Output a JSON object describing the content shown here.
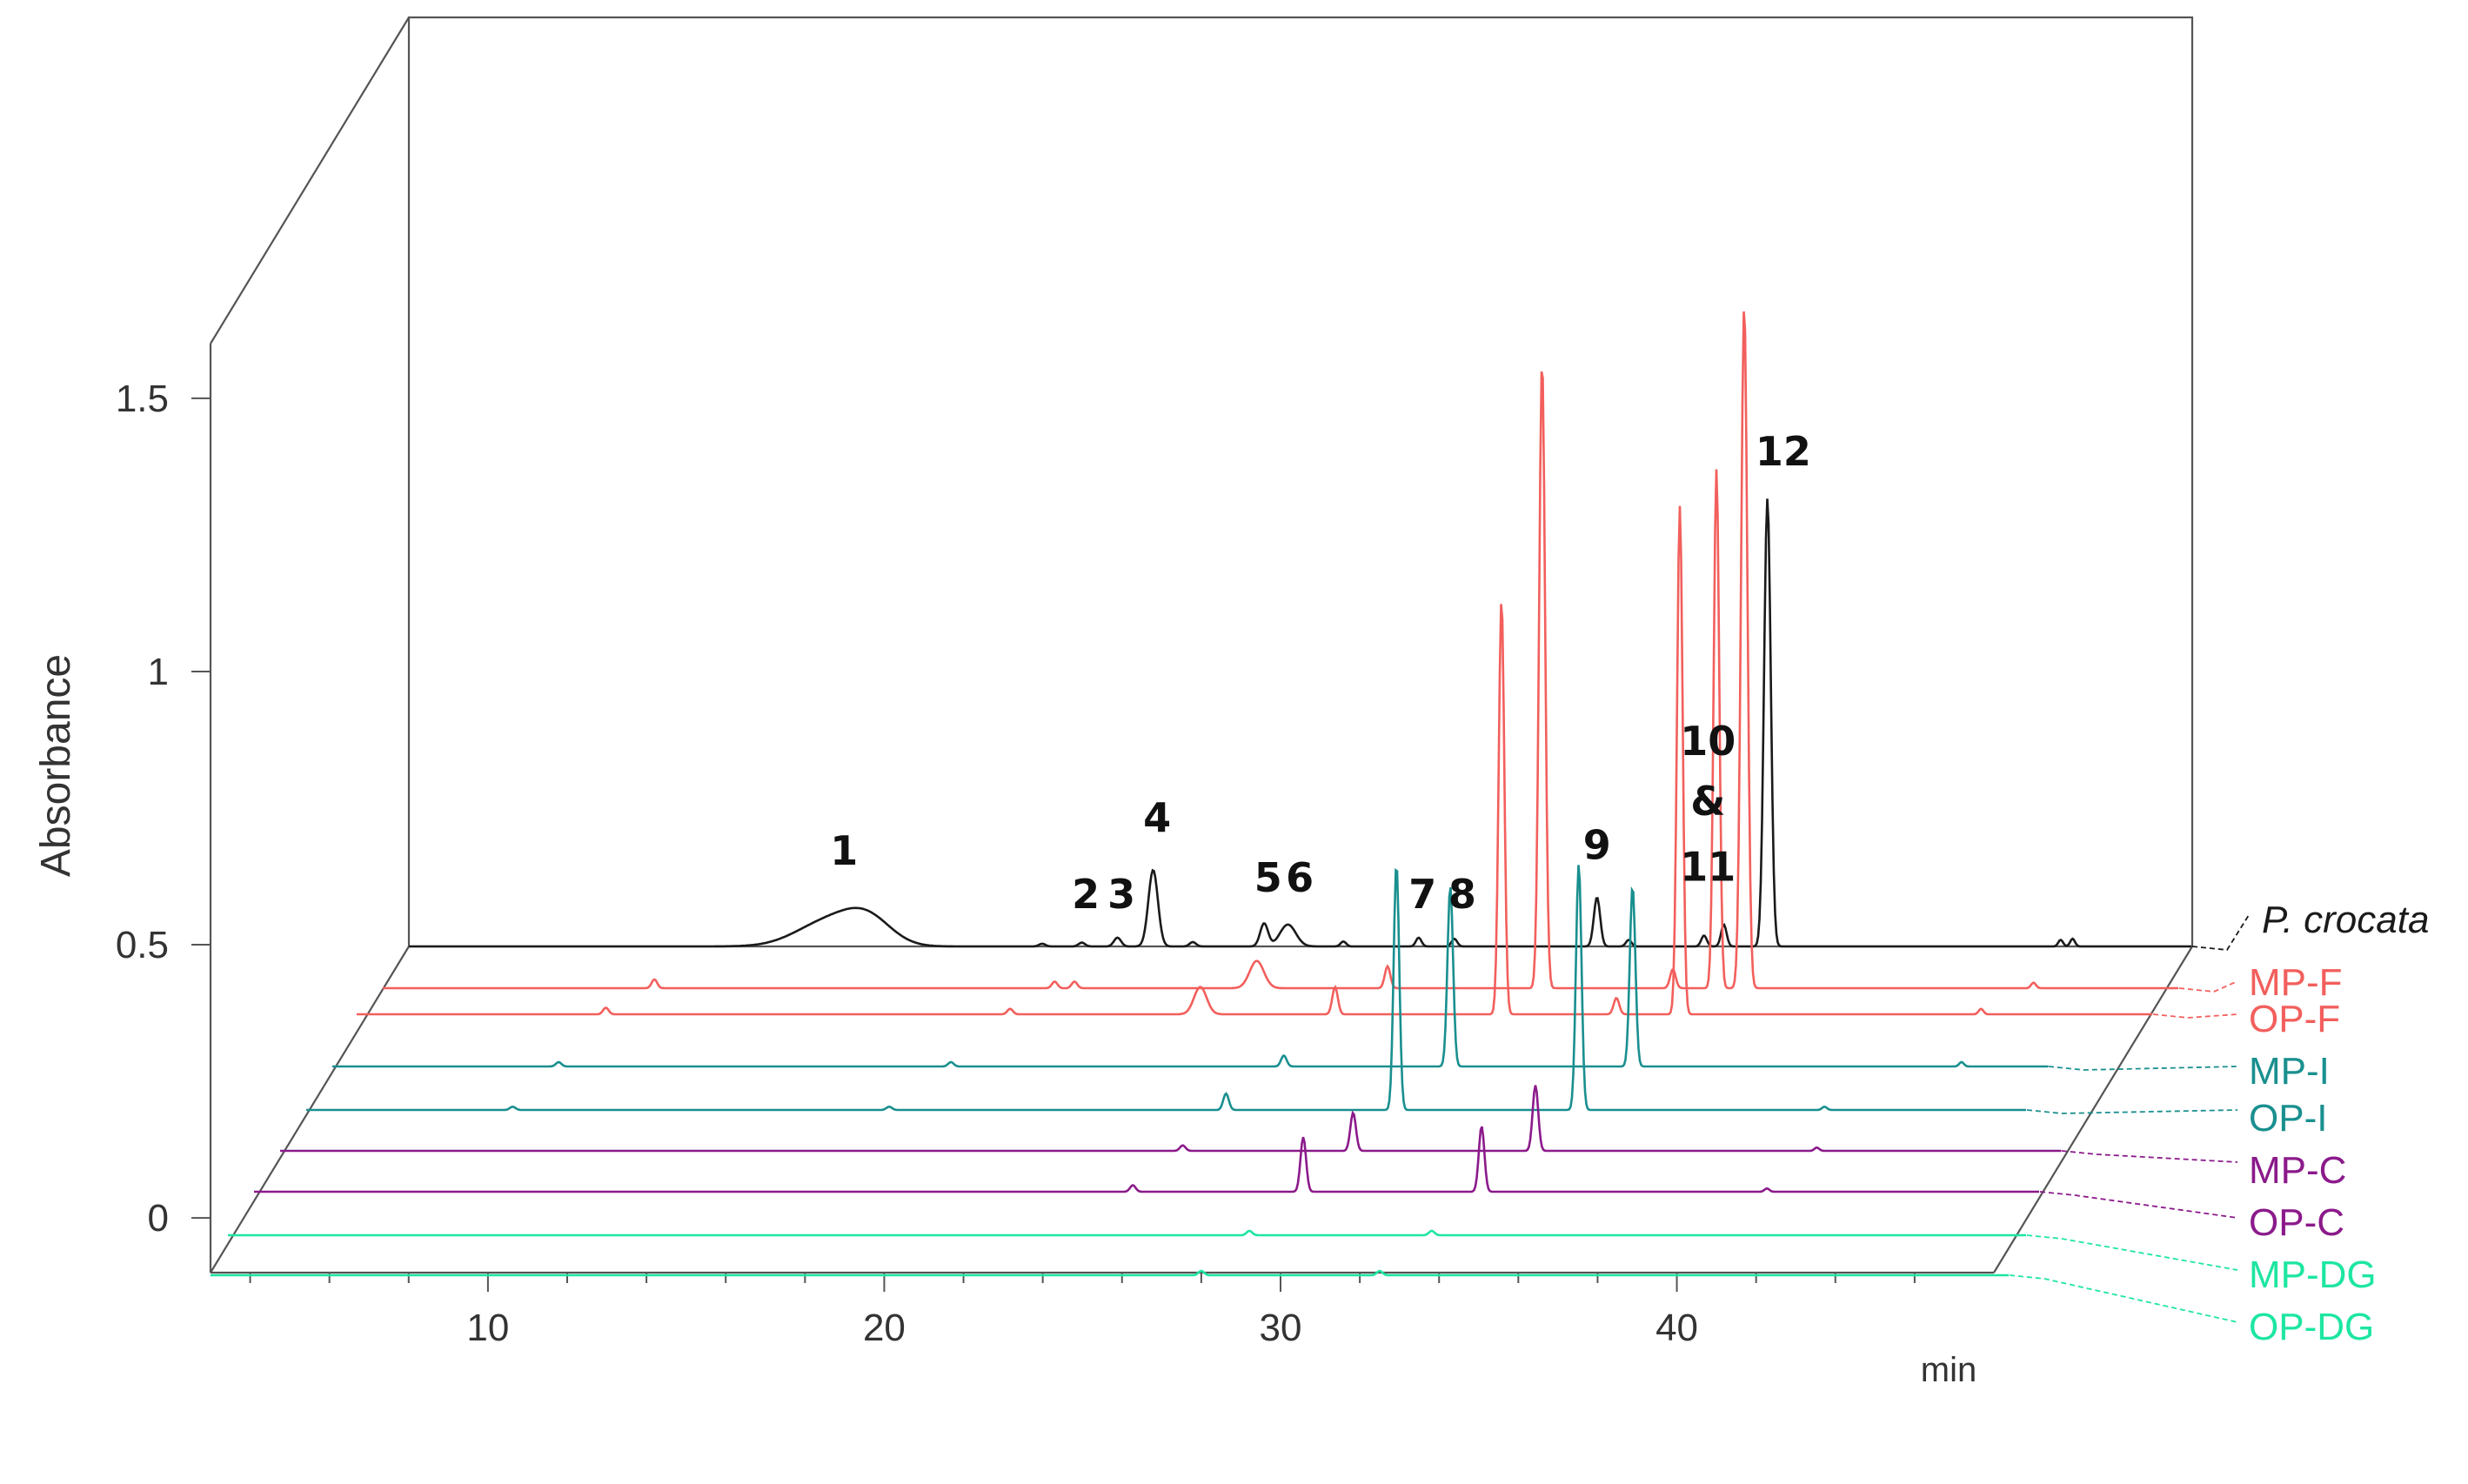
{
  "chart_data": {
    "type": "line",
    "subtype": "stacked-3d-chromatograms",
    "title": "",
    "xlabel": "",
    "x_unit": "min",
    "ylabel": "Absorbance",
    "xlim": [
      3,
      48
    ],
    "ylim": [
      -0.1,
      1.6
    ],
    "x_ticks": [
      {
        "value": 10,
        "label": "10"
      },
      {
        "value": 20,
        "label": "20"
      },
      {
        "value": 30,
        "label": "30"
      },
      {
        "value": 40,
        "label": "40"
      }
    ],
    "y_ticks": [
      {
        "value": 0,
        "label": "0"
      },
      {
        "value": 0.5,
        "label": "0.5"
      },
      {
        "value": 1,
        "label": "1"
      },
      {
        "value": 1.5,
        "label": "1.5"
      }
    ],
    "grid": false,
    "legend_position": "right",
    "series": [
      {
        "name": "P. crocata",
        "color": "#1a1a1a",
        "italic": true,
        "peaks": [
          {
            "x": 13.8,
            "y": 0.045,
            "w": 0.8
          },
          {
            "x": 14.8,
            "y": 0.045,
            "w": 0.6
          },
          {
            "x": 19.2,
            "y": 0.005,
            "w": 0.08
          },
          {
            "x": 20.2,
            "y": 0.007,
            "w": 0.08
          },
          {
            "x": 21.1,
            "y": 0.016,
            "w": 0.09
          },
          {
            "x": 22.0,
            "y": 0.14,
            "w": 0.12
          },
          {
            "x": 23.0,
            "y": 0.008,
            "w": 0.08
          },
          {
            "x": 24.8,
            "y": 0.042,
            "w": 0.1
          },
          {
            "x": 25.4,
            "y": 0.04,
            "w": 0.2
          },
          {
            "x": 26.8,
            "y": 0.009,
            "w": 0.07
          },
          {
            "x": 28.7,
            "y": 0.016,
            "w": 0.07
          },
          {
            "x": 29.6,
            "y": 0.014,
            "w": 0.07
          },
          {
            "x": 33.2,
            "y": 0.09,
            "w": 0.08
          },
          {
            "x": 34.0,
            "y": 0.012,
            "w": 0.07
          },
          {
            "x": 35.9,
            "y": 0.02,
            "w": 0.07
          },
          {
            "x": 36.4,
            "y": 0.04,
            "w": 0.07
          },
          {
            "x": 37.5,
            "y": 0.82,
            "w": 0.085
          },
          {
            "x": 44.9,
            "y": 0.012,
            "w": 0.06
          },
          {
            "x": 45.2,
            "y": 0.014,
            "w": 0.06
          }
        ]
      },
      {
        "name": "MP-F",
        "color": "#f25f5c",
        "italic": false,
        "peaks": [
          {
            "x": 9.7,
            "y": 0.016,
            "w": 0.07
          },
          {
            "x": 19.8,
            "y": 0.012,
            "w": 0.07
          },
          {
            "x": 20.3,
            "y": 0.012,
            "w": 0.07
          },
          {
            "x": 24.9,
            "y": 0.05,
            "w": 0.18
          },
          {
            "x": 28.2,
            "y": 0.04,
            "w": 0.07
          },
          {
            "x": 32.1,
            "y": 1.15,
            "w": 0.075
          },
          {
            "x": 35.4,
            "y": 0.035,
            "w": 0.07
          },
          {
            "x": 36.5,
            "y": 0.95,
            "w": 0.07
          },
          {
            "x": 37.2,
            "y": 1.25,
            "w": 0.08
          },
          {
            "x": 44.5,
            "y": 0.01,
            "w": 0.06
          }
        ]
      },
      {
        "name": "OP-F",
        "color": "#f25f5c",
        "italic": false,
        "peaks": [
          {
            "x": 9.2,
            "y": 0.012,
            "w": 0.07
          },
          {
            "x": 19.4,
            "y": 0.01,
            "w": 0.07
          },
          {
            "x": 24.2,
            "y": 0.05,
            "w": 0.16
          },
          {
            "x": 27.6,
            "y": 0.05,
            "w": 0.07
          },
          {
            "x": 31.8,
            "y": 0.76,
            "w": 0.07
          },
          {
            "x": 34.7,
            "y": 0.03,
            "w": 0.07
          },
          {
            "x": 36.3,
            "y": 0.93,
            "w": 0.07
          },
          {
            "x": 43.9,
            "y": 0.01,
            "w": 0.06
          }
        ]
      },
      {
        "name": "MP-I",
        "color": "#1a8f8f",
        "italic": false,
        "peaks": [
          {
            "x": 8.6,
            "y": 0.008,
            "w": 0.07
          },
          {
            "x": 18.5,
            "y": 0.008,
            "w": 0.07
          },
          {
            "x": 26.9,
            "y": 0.02,
            "w": 0.07
          },
          {
            "x": 31.1,
            "y": 0.33,
            "w": 0.07
          },
          {
            "x": 35.7,
            "y": 0.33,
            "w": 0.07
          },
          {
            "x": 44.0,
            "y": 0.008,
            "w": 0.06
          }
        ]
      },
      {
        "name": "OP-I",
        "color": "#1a8f8f",
        "italic": false,
        "peaks": [
          {
            "x": 8.1,
            "y": 0.006,
            "w": 0.07
          },
          {
            "x": 17.6,
            "y": 0.006,
            "w": 0.07
          },
          {
            "x": 26.1,
            "y": 0.03,
            "w": 0.07
          },
          {
            "x": 30.4,
            "y": 0.45,
            "w": 0.07
          },
          {
            "x": 35.0,
            "y": 0.45,
            "w": 0.07
          },
          {
            "x": 41.2,
            "y": 0.006,
            "w": 0.06
          }
        ]
      },
      {
        "name": "MP-C",
        "color": "#8b1a8b",
        "italic": false,
        "peaks": [
          {
            "x": 25.6,
            "y": 0.01,
            "w": 0.07
          },
          {
            "x": 29.9,
            "y": 0.07,
            "w": 0.07
          },
          {
            "x": 34.5,
            "y": 0.12,
            "w": 0.07
          },
          {
            "x": 41.6,
            "y": 0.006,
            "w": 0.06
          }
        ]
      },
      {
        "name": "OP-C",
        "color": "#8b1a8b",
        "italic": false,
        "peaks": [
          {
            "x": 25.0,
            "y": 0.012,
            "w": 0.07
          },
          {
            "x": 29.3,
            "y": 0.1,
            "w": 0.07
          },
          {
            "x": 33.8,
            "y": 0.12,
            "w": 0.07
          },
          {
            "x": 41.0,
            "y": 0.006,
            "w": 0.06
          }
        ]
      },
      {
        "name": "MP-DG",
        "color": "#1de6a0",
        "italic": false,
        "peaks": [
          {
            "x": 28.6,
            "y": 0.008,
            "w": 0.07
          },
          {
            "x": 33.2,
            "y": 0.008,
            "w": 0.07
          }
        ]
      },
      {
        "name": "OP-DG",
        "color": "#1de6a0",
        "italic": false,
        "peaks": [
          {
            "x": 28.0,
            "y": 0.008,
            "w": 0.07
          },
          {
            "x": 32.5,
            "y": 0.008,
            "w": 0.07
          }
        ]
      }
    ],
    "annotations": [
      {
        "text": "1",
        "series": "P. crocata",
        "x": 14.2,
        "y": 0.15
      },
      {
        "text": "2",
        "series": "P. crocata",
        "x": 20.3,
        "y": 0.07
      },
      {
        "text": "3",
        "series": "P. crocata",
        "x": 21.2,
        "y": 0.07
      },
      {
        "text": "4",
        "series": "P. crocata",
        "x": 22.1,
        "y": 0.21
      },
      {
        "text": "5",
        "series": "P. crocata",
        "x": 24.9,
        "y": 0.1
      },
      {
        "text": "6",
        "series": "P. crocata",
        "x": 25.7,
        "y": 0.1
      },
      {
        "text": "7",
        "series": "P. crocata",
        "x": 28.8,
        "y": 0.07
      },
      {
        "text": "8",
        "series": "P. crocata",
        "x": 29.8,
        "y": 0.07
      },
      {
        "text": "9",
        "series": "P. crocata",
        "x": 33.2,
        "y": 0.16
      },
      {
        "text": "10",
        "series": "P. crocata",
        "x": 36.0,
        "y": 0.35
      },
      {
        "text": "&",
        "series": "P. crocata",
        "x": 36.0,
        "y": 0.24
      },
      {
        "text": "11",
        "series": "P. crocata",
        "x": 36.0,
        "y": 0.12
      },
      {
        "text": "12",
        "series": "P. crocata",
        "x": 37.9,
        "y": 0.88
      }
    ]
  }
}
